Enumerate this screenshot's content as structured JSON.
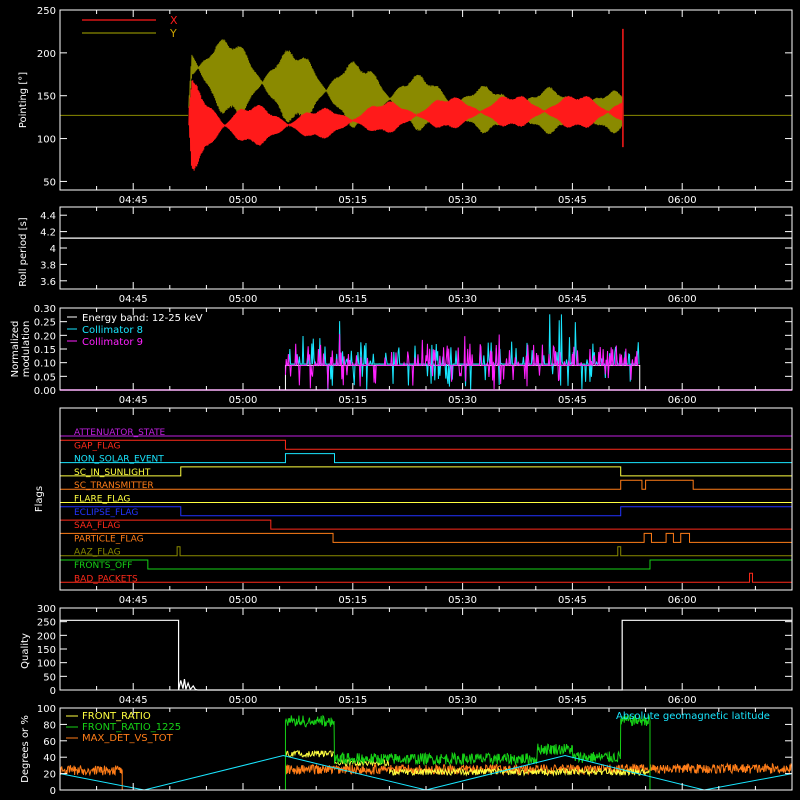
{
  "time_axis": {
    "start_min": 275,
    "end_min": 375,
    "ticks": [
      {
        "min": 285,
        "label": "04:45"
      },
      {
        "min": 300,
        "label": "05:00"
      },
      {
        "min": 315,
        "label": "05:15"
      },
      {
        "min": 330,
        "label": "05:30"
      },
      {
        "min": 345,
        "label": "05:45"
      },
      {
        "min": 360,
        "label": "06:00"
      }
    ]
  },
  "colors": {
    "x": "#ff1a1a",
    "y": "#8a8a00",
    "white": "#ffffff",
    "cyan": "#19e6ff",
    "magenta": "#ff22ff",
    "green": "#16d016",
    "orange": "#ff7d18",
    "yellow": "#ffff40",
    "blue": "#2233ff",
    "red": "#ff2a1a",
    "purple": "#c020e0"
  },
  "chart_data": [
    {
      "type": "line",
      "ylabel": "Pointing [°]",
      "ylim": [
        40,
        250
      ],
      "yticks": [
        50,
        100,
        150,
        200,
        250
      ],
      "series": [
        {
          "name": "X",
          "color": "#ff1a1a",
          "envelope_x": [
            275,
            292.5,
            293,
            296,
            300,
            305,
            310,
            315,
            320,
            325,
            330,
            335,
            340,
            345,
            348,
            350,
            351.9,
            352,
            375
          ],
          "upper": [
            127,
            127,
            168,
            150,
            142,
            136,
            135,
            139,
            144,
            147,
            150,
            151,
            152,
            151,
            153,
            152,
            155,
            127,
            127
          ],
          "lower": [
            127,
            127,
            62,
            80,
            90,
            95,
            99,
            103,
            106,
            109,
            111,
            112,
            112,
            111,
            109,
            110,
            108,
            127,
            127
          ],
          "spike_x": 351.9,
          "spike_top": 228
        },
        {
          "name": "Y",
          "color": "#8a8a00",
          "envelope_x": [
            275,
            292.5,
            293,
            296,
            300,
            305,
            310,
            315,
            320,
            325,
            330,
            335,
            340,
            345,
            348,
            350,
            351.9,
            352,
            375
          ],
          "upper": [
            127,
            127,
            232,
            222,
            214,
            207,
            200,
            191,
            183,
            173,
            163,
            161,
            160,
            159,
            157,
            156,
            155,
            127,
            127
          ],
          "lower": [
            127,
            127,
            140,
            128,
            122,
            118,
            115,
            112,
            110,
            109,
            107,
            106,
            105,
            106,
            107,
            106,
            108,
            127,
            127
          ]
        }
      ]
    },
    {
      "type": "line",
      "ylabel": "Roll period [s]",
      "ylim": [
        3.5,
        4.5
      ],
      "yticks": [
        3.6,
        3.8,
        4.0,
        4.2,
        4.4
      ],
      "series": [
        {
          "name": "",
          "color": "#ffffff",
          "x": [
            275,
            375
          ],
          "y": [
            4.12,
            4.12
          ]
        }
      ]
    },
    {
      "type": "line",
      "ylabel_lines": [
        "Normalized",
        "modulation"
      ],
      "ylim": [
        0,
        0.3
      ],
      "yticks": [
        0.0,
        0.05,
        0.1,
        0.15,
        0.2,
        0.25,
        0.3
      ],
      "ytick_labels": [
        "0.00",
        "0.05",
        "0.10",
        "0.15",
        "0.20",
        "0.25",
        "0.30"
      ],
      "legend_title": "Energy band: 12-25 keV",
      "active_range": [
        305.8,
        354.2
      ],
      "series": [
        {
          "name": "Collimator 8",
          "color": "#19e6ff",
          "baseline": 0.095,
          "max_spike": 0.28
        },
        {
          "name": "Collimator 9",
          "color": "#ff22ff",
          "baseline": 0.09,
          "max_spike": 0.22
        }
      ]
    },
    {
      "type": "step",
      "ylabel": "Flags",
      "flags": [
        {
          "name": "ATTENUATOR_STATE",
          "color": "#c020e0",
          "segments": [
            [
              275,
              0
            ],
            [
              375,
              0
            ]
          ]
        },
        {
          "name": "GAP_FLAG",
          "color": "#ff2a1a",
          "segments": [
            [
              275,
              1
            ],
            [
              305.8,
              0
            ],
            [
              375,
              0
            ]
          ]
        },
        {
          "name": "NON_SOLAR_EVENT",
          "color": "#19e6ff",
          "segments": [
            [
              275,
              0
            ],
            [
              305.8,
              1
            ],
            [
              312.5,
              0
            ],
            [
              375,
              0
            ]
          ]
        },
        {
          "name": "SC_IN_SUNLIGHT",
          "color": "#ffff40",
          "segments": [
            [
              275,
              0
            ],
            [
              291.5,
              1
            ],
            [
              351.6,
              0
            ],
            [
              375,
              0
            ]
          ]
        },
        {
          "name": "SC_TRANSMITTER",
          "color": "#ff7d18",
          "segments": [
            [
              275,
              0
            ],
            [
              351.6,
              1
            ],
            [
              354.5,
              0
            ],
            [
              355.0,
              1
            ],
            [
              361.5,
              0
            ],
            [
              375,
              0
            ]
          ]
        },
        {
          "name": "FLARE_FLAG",
          "color": "#ffff40",
          "segments": [
            [
              275,
              0
            ],
            [
              375,
              0
            ]
          ]
        },
        {
          "name": "ECLIPSE_FLAG",
          "color": "#2233ff",
          "segments": [
            [
              275,
              1
            ],
            [
              291.5,
              0
            ],
            [
              351.6,
              1
            ],
            [
              375,
              1
            ]
          ]
        },
        {
          "name": "SAA_FLAG",
          "color": "#ff2a1a",
          "segments": [
            [
              275,
              1
            ],
            [
              303.8,
              0
            ],
            [
              375,
              0
            ]
          ]
        },
        {
          "name": "PARTICLE_FLAG",
          "color": "#ff7d18",
          "segments": [
            [
              275,
              1
            ],
            [
              312.3,
              0
            ],
            [
              354.8,
              1
            ],
            [
              355.8,
              0
            ],
            [
              357.8,
              1
            ],
            [
              358.8,
              0
            ],
            [
              359.8,
              1
            ],
            [
              361.0,
              0
            ],
            [
              375,
              0
            ]
          ]
        },
        {
          "name": "AAZ_FLAG",
          "color": "#8a8a00",
          "segments": [
            [
              275,
              0
            ],
            [
              291.0,
              1
            ],
            [
              291.4,
              0
            ],
            [
              351.2,
              1
            ],
            [
              351.6,
              0
            ],
            [
              375,
              0
            ]
          ]
        },
        {
          "name": "FRONTS_OFF",
          "color": "#16d016",
          "segments": [
            [
              275,
              1
            ],
            [
              287.0,
              0
            ],
            [
              355.6,
              1
            ],
            [
              375,
              1
            ]
          ]
        },
        {
          "name": "BAD_PACKETS",
          "color": "#ff2a1a",
          "segments": [
            [
              275,
              0
            ],
            [
              369.2,
              1
            ],
            [
              369.6,
              0
            ],
            [
              375,
              0
            ]
          ]
        }
      ]
    },
    {
      "type": "line",
      "ylabel": "Quality",
      "ylim": [
        0,
        300
      ],
      "yticks": [
        0,
        50,
        100,
        150,
        200,
        250,
        300
      ],
      "series": [
        {
          "name": "",
          "color": "#ffffff",
          "x": [
            275,
            291.2,
            291.2,
            291.5,
            291.8,
            292.0,
            292.2,
            292.5,
            292.8,
            293.2,
            293.5,
            293.8,
            351.8,
            351.8,
            375
          ],
          "y": [
            255,
            255,
            0,
            35,
            5,
            40,
            3,
            25,
            2,
            15,
            2,
            0,
            0,
            255,
            255
          ]
        }
      ]
    },
    {
      "type": "line",
      "ylabel": "Degrees or %",
      "ylim": [
        0,
        100
      ],
      "yticks": [
        0,
        20,
        40,
        60,
        80,
        100
      ],
      "right_label": "Absolute geomagnetic latitude",
      "series": [
        {
          "name": "FRONT_RATIO",
          "color": "#ffff40"
        },
        {
          "name": "FRONT_RATIO_1225",
          "color": "#16d016"
        },
        {
          "name": "MAX_DET_VS_TOT",
          "color": "#ff7d18"
        },
        {
          "name": "Absolute geomagnetic latitude",
          "color": "#19e6ff",
          "x": [
            275,
            286.5,
            305.5,
            325,
            344,
            363,
            375
          ],
          "y": [
            20,
            0,
            42,
            0,
            42,
            0,
            20
          ]
        }
      ],
      "green_segments": [
        [
          305.8,
          312.5,
          84
        ],
        [
          312.5,
          340.2,
          38
        ],
        [
          340.2,
          345.0,
          50
        ],
        [
          345.0,
          351.6,
          40
        ],
        [
          351.6,
          355.6,
          85
        ]
      ],
      "orange_levels": [
        [
          275,
          283.5,
          24
        ],
        [
          305.8,
          351.6,
          25
        ],
        [
          351.6,
          375,
          26
        ]
      ],
      "yellow_segments": [
        [
          305.8,
          312.5,
          44
        ],
        [
          312.5,
          320,
          33
        ],
        [
          320,
          355.6,
          22
        ]
      ]
    }
  ]
}
